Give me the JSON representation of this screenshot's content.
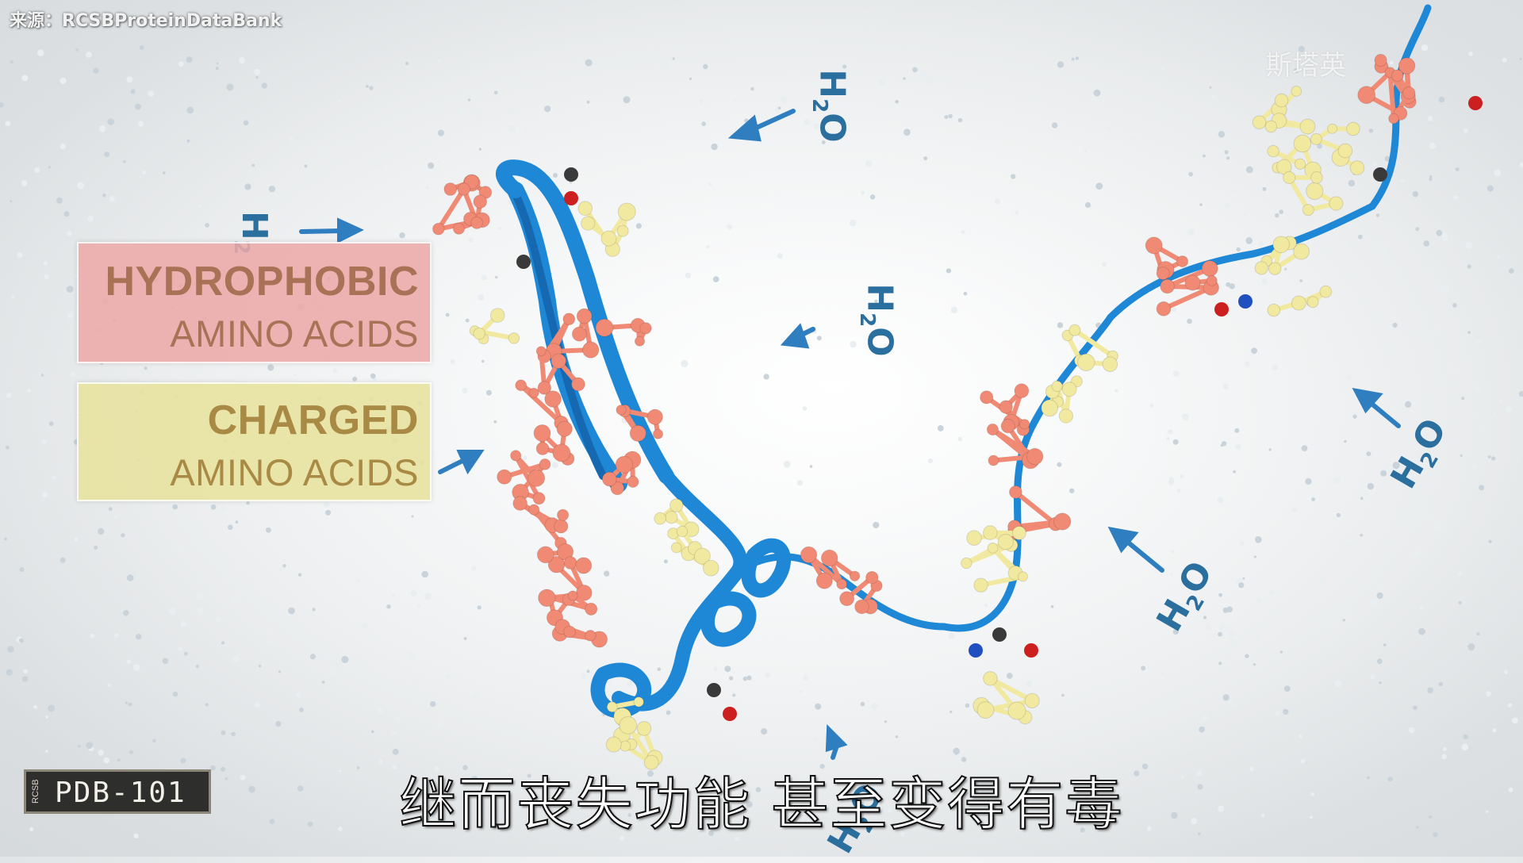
{
  "source_credit": "来源：RCSBProteinDataBank",
  "watermark": "斯塔英",
  "legend": {
    "hydrophobic": {
      "line1": "HYDROPHOBIC",
      "line2": "AMINO ACIDS",
      "color": "#ecaaa8"
    },
    "charged": {
      "line1": "CHARGED",
      "line2": "AMINO ACIDS",
      "color": "#e8e2a0"
    }
  },
  "water_label": {
    "main": "H",
    "sub": "2",
    "end": "O"
  },
  "badge": {
    "small": "RCSB",
    "label": "PDB-101"
  },
  "subtitle": "继而丧失功能 甚至变得有毒",
  "colors": {
    "ribbon": "#1e88d6",
    "hydrophobic_atoms": "#f08a74",
    "charged_atoms": "#f2e9a0",
    "arrows": "#2f7fc0"
  }
}
